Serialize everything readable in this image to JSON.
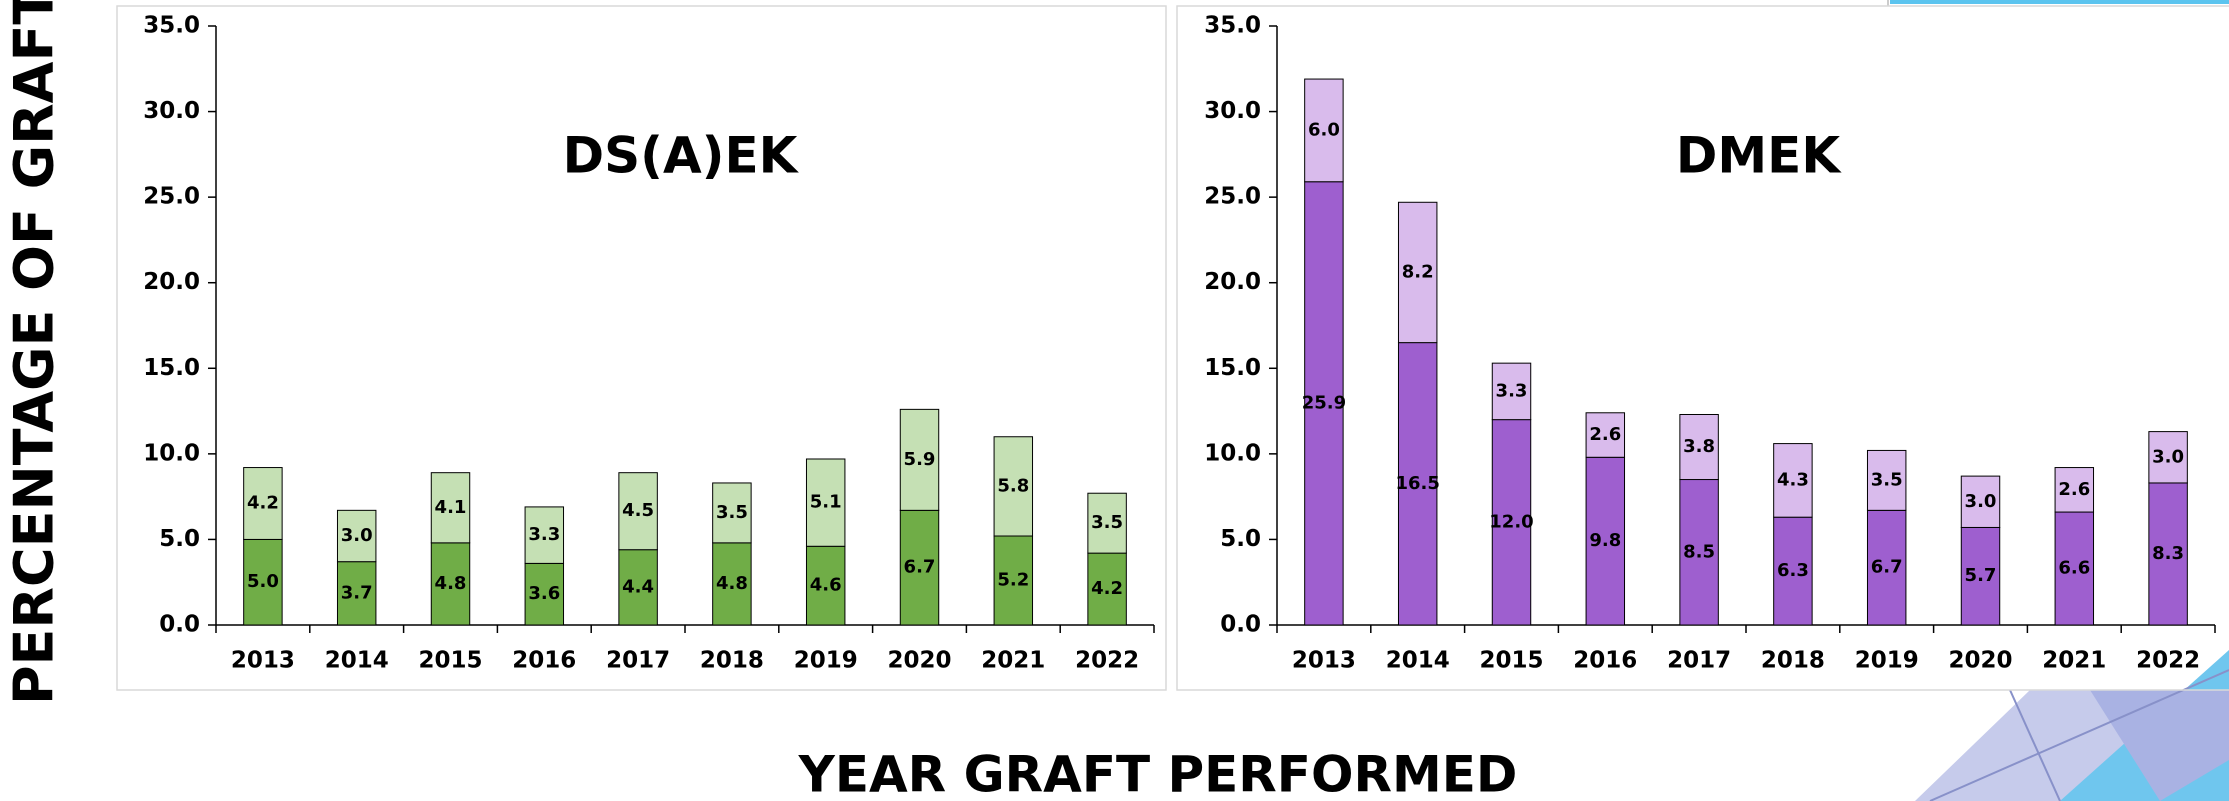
{
  "y_label": "PERCENTAGE OF GRAFTS",
  "x_label": "YEAR GRAFT PERFORMED",
  "chart_data": [
    {
      "type": "bar",
      "stacked": true,
      "title": "DS(A)EK",
      "categories": [
        "2013",
        "2014",
        "2015",
        "2016",
        "2017",
        "2018",
        "2019",
        "2020",
        "2021",
        "2022"
      ],
      "series": [
        {
          "color": "#70ad47",
          "values": [
            5.0,
            3.7,
            4.8,
            3.6,
            4.4,
            4.8,
            4.6,
            6.7,
            5.2,
            4.2
          ],
          "value_labels": [
            "5.0",
            "3.7",
            "4.8",
            "3.6",
            "4.4",
            "4.8",
            "4.6",
            "6.7",
            "5.2",
            "4.2"
          ]
        },
        {
          "color": "#c5e0b4",
          "values": [
            4.2,
            3.0,
            4.1,
            3.3,
            4.5,
            3.5,
            5.1,
            5.9,
            5.8,
            3.5
          ],
          "value_labels": [
            "4.2",
            "3.0",
            "4.1",
            "3.3",
            "4.5",
            "3.5",
            "5.1",
            "5.9",
            "5.8",
            "3.5"
          ]
        }
      ],
      "ylim": [
        0,
        35
      ],
      "yticks": [
        {
          "value": 0,
          "label": "0.0"
        },
        {
          "value": 5,
          "label": "5.0"
        },
        {
          "value": 10,
          "label": "10.0"
        },
        {
          "value": 15,
          "label": "15.0"
        },
        {
          "value": 20,
          "label": "20.0"
        },
        {
          "value": 25,
          "label": "25.0"
        },
        {
          "value": 30,
          "label": "30.0"
        },
        {
          "value": 35,
          "label": "35.0"
        }
      ]
    },
    {
      "type": "bar",
      "stacked": true,
      "title": "DMEK",
      "categories": [
        "2013",
        "2014",
        "2015",
        "2016",
        "2017",
        "2018",
        "2019",
        "2020",
        "2021",
        "2022"
      ],
      "series": [
        {
          "color": "#9e5fcf",
          "values": [
            25.9,
            16.5,
            12.0,
            9.8,
            8.5,
            6.3,
            6.7,
            5.7,
            6.6,
            8.3
          ],
          "value_labels": [
            "25.9",
            "16.5",
            "12.0",
            "9.8",
            "8.5",
            "6.3",
            "6.7",
            "5.7",
            "6.6",
            "8.3"
          ]
        },
        {
          "color": "#d9bbec",
          "values": [
            6.0,
            8.2,
            3.3,
            2.6,
            3.8,
            4.3,
            3.5,
            3.0,
            2.6,
            3.0
          ],
          "value_labels": [
            "6.0",
            "8.2",
            "3.3",
            "2.6",
            "3.8",
            "4.3",
            "3.5",
            "3.0",
            "2.6",
            "3.0"
          ]
        }
      ],
      "ylim": [
        0,
        35
      ],
      "yticks": [
        {
          "value": 0,
          "label": "0.0"
        },
        {
          "value": 5,
          "label": "5.0"
        },
        {
          "value": 10,
          "label": "10.0"
        },
        {
          "value": 15,
          "label": "15.0"
        },
        {
          "value": 20,
          "label": "20.0"
        },
        {
          "value": 25,
          "label": "25.0"
        },
        {
          "value": 30,
          "label": "30.0"
        },
        {
          "value": 35,
          "label": "35.0"
        }
      ]
    }
  ]
}
